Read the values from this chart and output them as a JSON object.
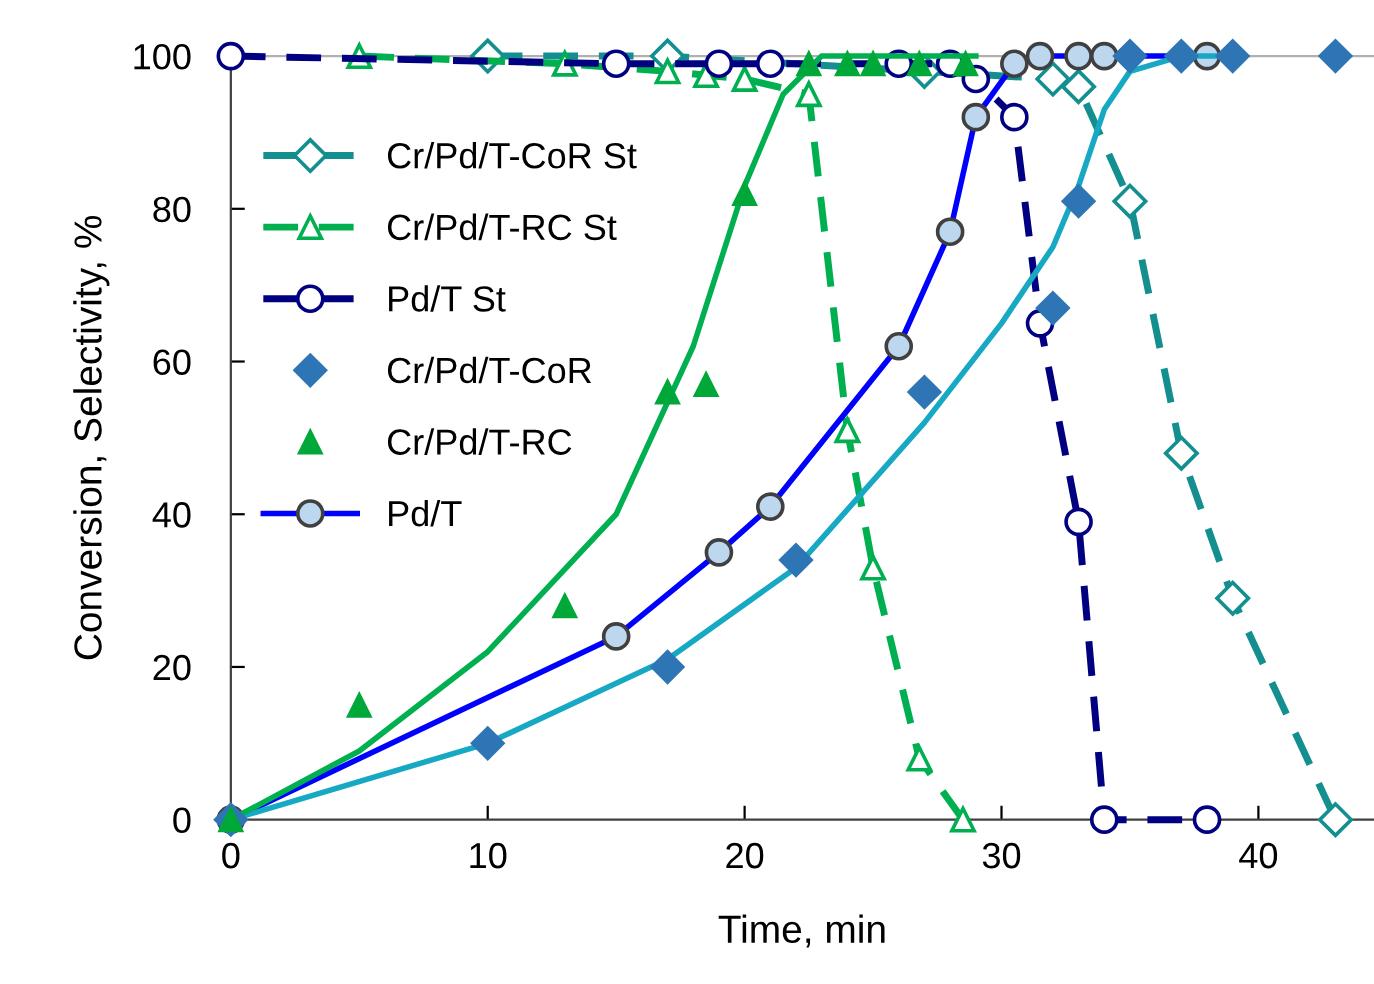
{
  "chart_data": {
    "type": "line",
    "xlabel": "Time, min",
    "ylabel": "Conversion, Selectivity, %",
    "xlim": [
      0,
      44.5
    ],
    "ylim": [
      0,
      100
    ],
    "xticks": [
      0,
      10,
      20,
      30,
      40
    ],
    "yticks": [
      0,
      20,
      40,
      60,
      80,
      100
    ],
    "grid": false,
    "legend": "top left",
    "series": [
      {
        "name": "Cr/Pd/T-CoR St",
        "line_style": "dashed",
        "marker": "diamond",
        "color": "#148f8f",
        "x": [
          10,
          17,
          27,
          32,
          33,
          35,
          37,
          39,
          43
        ],
        "values": [
          100,
          100,
          98,
          97,
          96,
          81,
          48,
          29,
          0
        ]
      },
      {
        "name": "Cr/Pd/T-RC St",
        "line_style": "dashed",
        "marker": "triangle",
        "color": "#00b050",
        "x": [
          5,
          13,
          17,
          18.5,
          20,
          22.5,
          24,
          25,
          26.8,
          28.5
        ],
        "values": [
          100,
          99,
          98,
          97.5,
          97,
          95,
          51,
          33,
          8,
          0
        ]
      },
      {
        "name": "Pd/T St",
        "line_style": "dashed",
        "marker": "circle",
        "color": "#000080",
        "x": [
          0,
          15,
          19,
          21,
          26,
          28,
          29,
          30.5,
          31.5,
          33,
          34,
          38
        ],
        "values": [
          100,
          99,
          99,
          99,
          99,
          99,
          97,
          92,
          65,
          39,
          0,
          0
        ]
      },
      {
        "name": "Cr/Pd/T-CoR",
        "type": "scatter",
        "marker": "diamond",
        "color": "#2e75b6",
        "x": [
          0,
          10,
          17,
          22,
          27,
          32,
          33,
          35,
          37,
          39,
          43
        ],
        "values": [
          0,
          10,
          20,
          34,
          56,
          67,
          81,
          100,
          100,
          100,
          100
        ]
      },
      {
        "name": "Cr/Pd/T-RC",
        "type": "scatter",
        "marker": "triangle",
        "color": "#00a83a",
        "x": [
          0,
          5,
          13,
          17,
          18.5,
          20,
          22.5,
          24,
          25,
          26.8,
          28.6
        ],
        "values": [
          0,
          15,
          28,
          56,
          57,
          82,
          99,
          99,
          99,
          99,
          99
        ]
      },
      {
        "name": "Pd/T",
        "line_style": "solid",
        "marker": "circle",
        "color": "#0000ff",
        "x": [
          0,
          15,
          19,
          21,
          26,
          28,
          29,
          30.5,
          31.5,
          33,
          34,
          38
        ],
        "values": [
          0,
          24,
          35,
          41,
          62,
          77,
          92,
          99,
          100,
          100,
          100,
          100
        ]
      },
      {
        "line_style": "solid",
        "marker": "none",
        "color": "#17a8c4",
        "x": [
          0,
          10,
          17,
          22,
          27,
          30,
          32,
          33,
          34,
          35,
          37,
          39
        ],
        "values": [
          0,
          10,
          21,
          33,
          52,
          65,
          75,
          83,
          93,
          98,
          100,
          100
        ]
      },
      {
        "line_style": "solid",
        "marker": "none",
        "color": "#00b050",
        "x": [
          0,
          5,
          10,
          15,
          18,
          20,
          21.5,
          23,
          29
        ],
        "values": [
          0,
          9,
          22,
          40,
          62,
          83,
          95,
          100,
          100
        ]
      }
    ]
  }
}
